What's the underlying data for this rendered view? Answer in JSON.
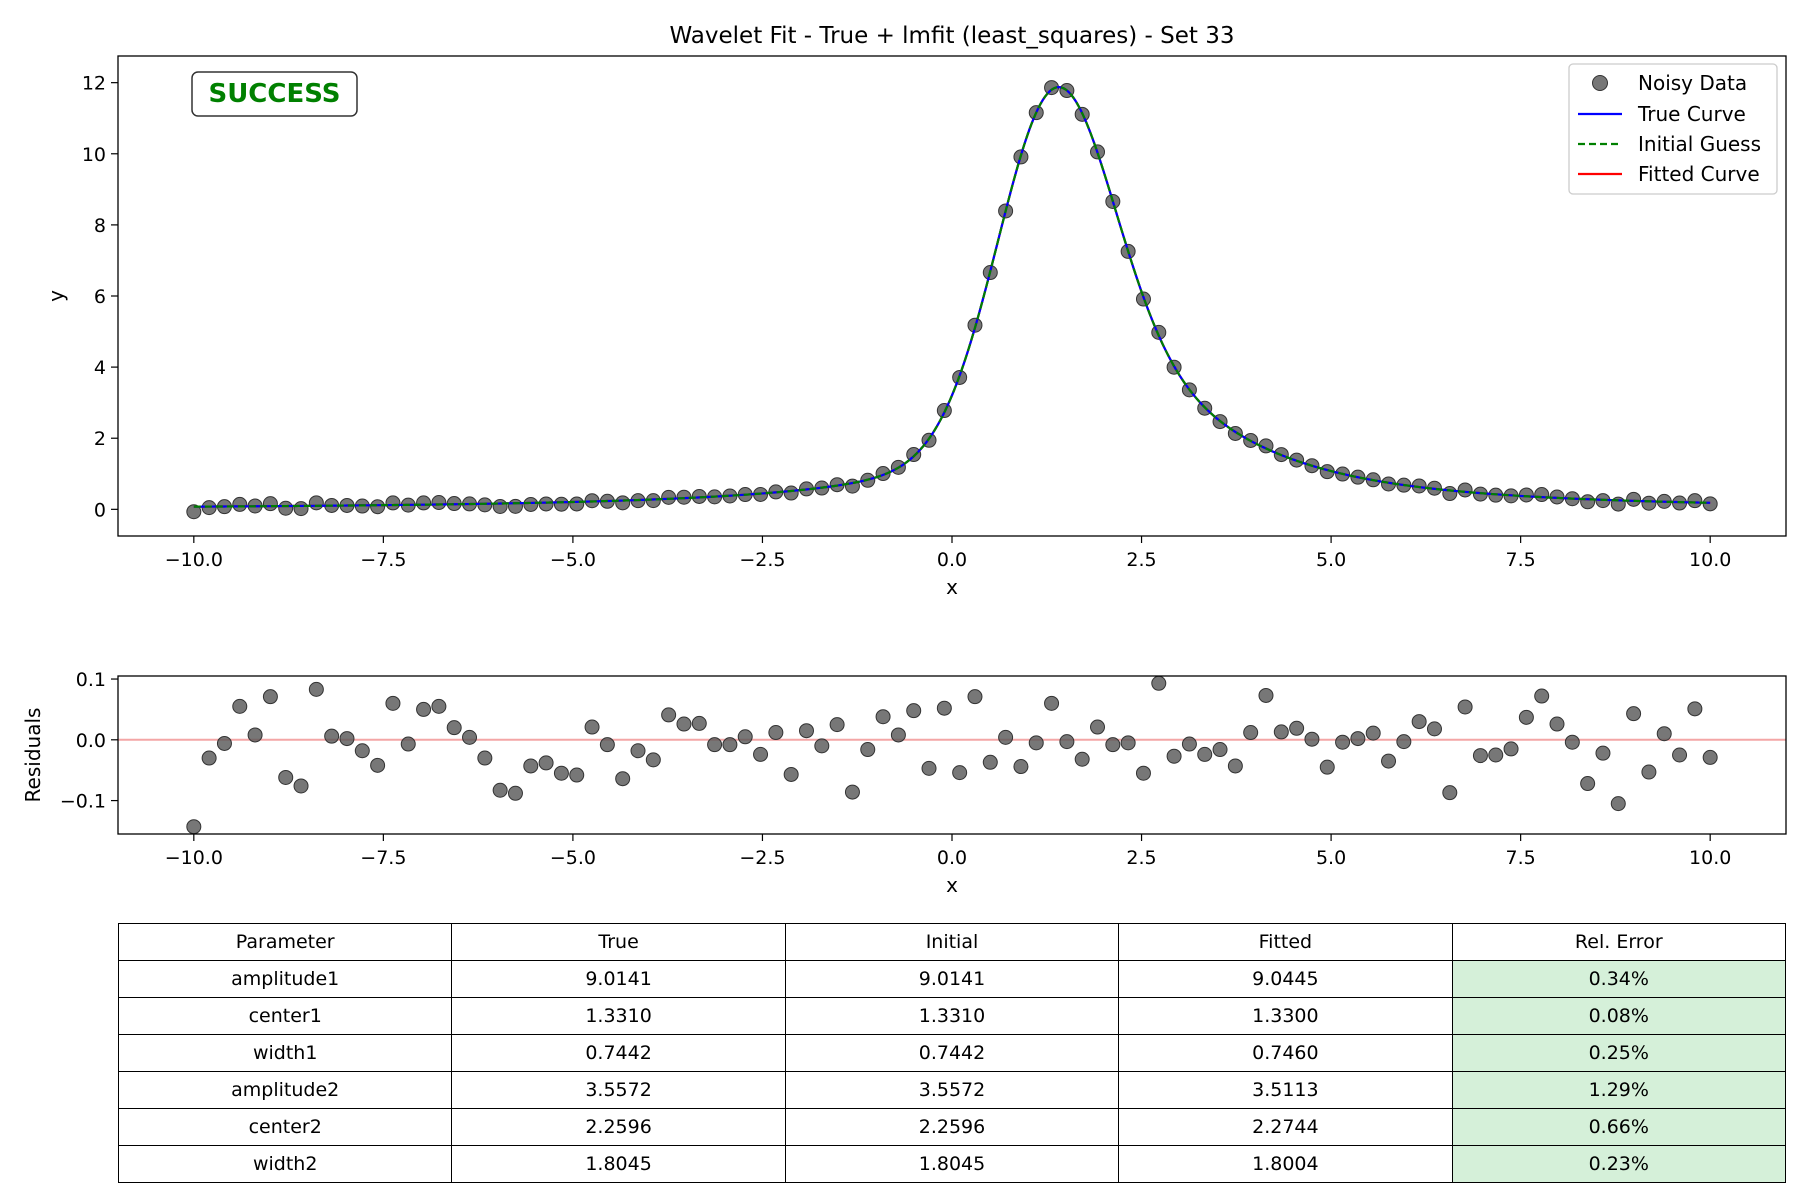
{
  "title": "Wavelet Fit - True + lmfit (least_squares) - Set 33",
  "status_badge": "SUCCESS",
  "colors": {
    "noisy": "#555555",
    "true_curve": "#0000ff",
    "initial_guess": "#008000",
    "fitted_curve": "#ff0000",
    "success": "#008000",
    "residual_zero": "#f4a6a6",
    "error_cell": "#d5f0d9"
  },
  "chart_data": [
    {
      "type": "line",
      "title": "Wavelet Fit - True + lmfit (least_squares) - Set 33",
      "xlabel": "x",
      "ylabel": "y",
      "xlim": [
        -11,
        11
      ],
      "ylim": [
        -0.75,
        12.75
      ],
      "xticks": [
        -10,
        -7.5,
        -5,
        -2.5,
        0,
        2.5,
        5,
        7.5,
        10
      ],
      "xtick_labels": [
        "−10.0",
        "−7.5",
        "−5.0",
        "−2.5",
        "0.0",
        "2.5",
        "5.0",
        "7.5",
        "10.0"
      ],
      "yticks": [
        0,
        2,
        4,
        6,
        8,
        10,
        12
      ],
      "ytick_labels": [
        "0",
        "2",
        "4",
        "6",
        "8",
        "10",
        "12"
      ],
      "legend_position": "top-right",
      "model": {
        "amplitude1": 9.0141,
        "center1": 1.331,
        "width1": 0.7442,
        "amplitude2": 3.5572,
        "center2": 2.2596,
        "width2": 1.8045
      },
      "x_range": [
        -10,
        10
      ],
      "n_points": 100,
      "series": [
        {
          "name": "Noisy Data",
          "style": "markers"
        },
        {
          "name": "True Curve",
          "style": "solid"
        },
        {
          "name": "Initial Guess",
          "style": "dashed"
        },
        {
          "name": "Fitted Curve",
          "style": "solid"
        }
      ]
    },
    {
      "type": "scatter",
      "xlabel": "x",
      "ylabel": "Residuals",
      "xlim": [
        -11,
        11
      ],
      "ylim": [
        -0.155,
        0.105
      ],
      "xticks": [
        -10,
        -7.5,
        -5,
        -2.5,
        0,
        2.5,
        5,
        7.5,
        10
      ],
      "xtick_labels": [
        "−10.0",
        "−7.5",
        "−5.0",
        "−2.5",
        "0.0",
        "2.5",
        "5.0",
        "7.5",
        "10.0"
      ],
      "yticks": [
        -0.1,
        0.0,
        0.1
      ],
      "ytick_labels": [
        "−0.1",
        "0.0",
        "0.1"
      ],
      "residuals": [
        -0.143,
        -0.03,
        -0.006,
        0.055,
        0.008,
        0.071,
        -0.062,
        -0.076,
        0.083,
        0.006,
        0.002,
        -0.018,
        -0.042,
        0.06,
        -0.007,
        0.05,
        0.055,
        0.02,
        0.004,
        -0.03,
        -0.083,
        -0.088,
        -0.043,
        -0.038,
        -0.055,
        -0.058,
        0.021,
        -0.008,
        -0.064,
        -0.018,
        -0.033,
        0.041,
        0.026,
        0.027,
        -0.008,
        -0.008,
        0.005,
        -0.024,
        0.012,
        -0.057,
        0.015,
        -0.01,
        0.025,
        -0.086,
        -0.016,
        0.038,
        0.008,
        0.048,
        -0.047,
        0.052,
        -0.054,
        0.071,
        -0.037,
        0.004,
        -0.044,
        -0.005,
        0.06,
        -0.003,
        -0.032,
        0.021,
        -0.008,
        -0.005,
        -0.055,
        0.093,
        -0.027,
        -0.007,
        -0.024,
        -0.016,
        -0.043,
        0.012,
        0.073,
        0.013,
        0.019,
        0.001,
        -0.045,
        -0.004,
        0.002,
        0.011,
        -0.035,
        -0.003,
        0.03,
        0.018,
        -0.087,
        0.054,
        -0.026,
        -0.025,
        -0.015,
        0.037,
        0.072,
        0.026,
        -0.004,
        -0.072,
        -0.022,
        -0.105,
        0.043,
        -0.053,
        0.01,
        -0.025,
        0.051,
        -0.029
      ]
    }
  ],
  "table": {
    "headers": [
      "Parameter",
      "True",
      "Initial",
      "Fitted",
      "Rel. Error"
    ],
    "rows": [
      [
        "amplitude1",
        "9.0141",
        "9.0141",
        "9.0445",
        "0.34%"
      ],
      [
        "center1",
        "1.3310",
        "1.3310",
        "1.3300",
        "0.08%"
      ],
      [
        "width1",
        "0.7442",
        "0.7442",
        "0.7460",
        "0.25%"
      ],
      [
        "amplitude2",
        "3.5572",
        "3.5572",
        "3.5113",
        "1.29%"
      ],
      [
        "center2",
        "2.2596",
        "2.2596",
        "2.2744",
        "0.66%"
      ],
      [
        "width2",
        "1.8045",
        "1.8045",
        "1.8004",
        "0.23%"
      ]
    ]
  }
}
